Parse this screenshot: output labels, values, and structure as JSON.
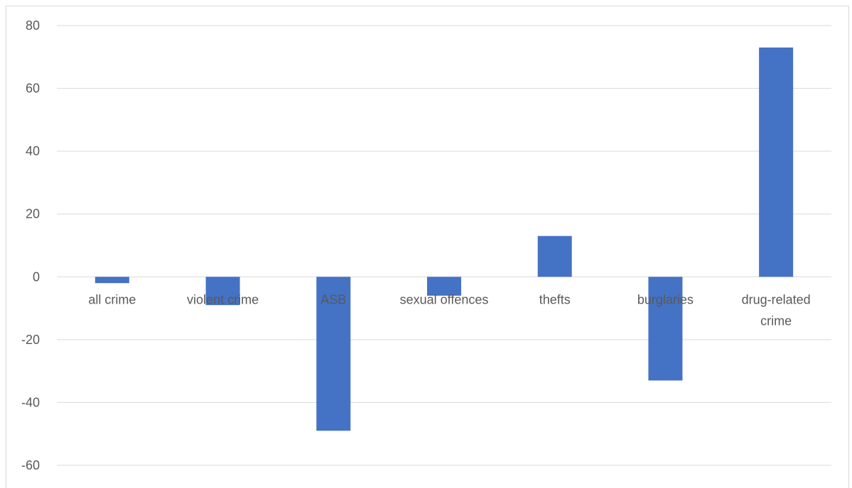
{
  "chart_data": {
    "type": "bar",
    "title": "",
    "xlabel": "",
    "ylabel": "",
    "categories": [
      "all crime",
      "violent crime",
      "ASB",
      "sexual offences",
      "thefts",
      "burglaries",
      "drug-related crime"
    ],
    "category_lines": [
      [
        "all crime"
      ],
      [
        "violent crime"
      ],
      [
        "ASB"
      ],
      [
        "sexual offences"
      ],
      [
        "thefts"
      ],
      [
        "burglaries"
      ],
      [
        "drug-related",
        "crime"
      ]
    ],
    "values": [
      -2,
      -9,
      -49,
      -6,
      13,
      -33,
      73
    ],
    "ylim": [
      -60,
      80
    ],
    "yticks": [
      80,
      60,
      40,
      20,
      0,
      -20,
      -40,
      -60
    ],
    "grid": true,
    "legend": "none",
    "bar_color": "#4472c4",
    "gridline_color": "#d9d9d9",
    "label_color": "#595959"
  }
}
